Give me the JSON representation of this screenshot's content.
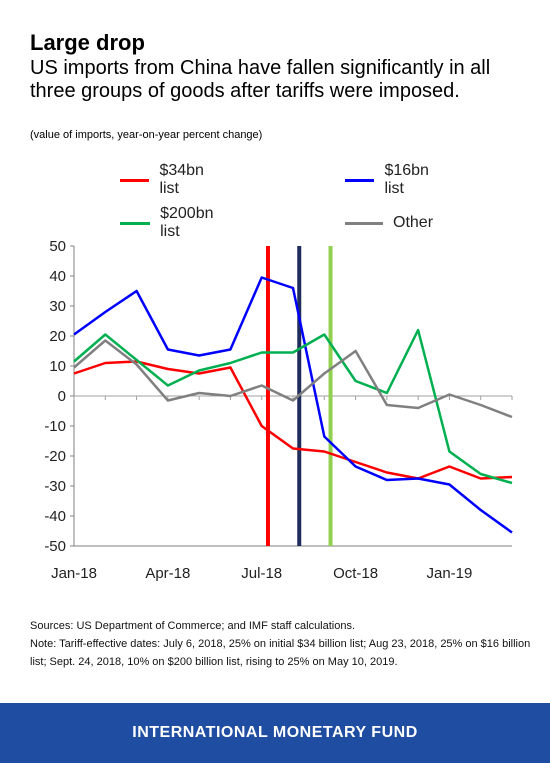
{
  "header": {
    "title": "Large drop",
    "subtitle": "US imports from China have fallen significantly in all three groups of goods after tariffs were imposed.",
    "unit_note": "(value of imports, year-on-year percent change)"
  },
  "legend": [
    {
      "label": "$34bn list",
      "color": "#ff0000"
    },
    {
      "label": "$16bn list",
      "color": "#0000ff"
    },
    {
      "label": "$200bn list",
      "color": "#00b050"
    },
    {
      "label": "Other",
      "color": "#808080"
    }
  ],
  "chart_data": {
    "type": "line",
    "title": "Large drop",
    "ylim": [
      -50,
      50
    ],
    "yticks": [
      50,
      40,
      30,
      20,
      10,
      0,
      -10,
      -20,
      -30,
      -40,
      -50
    ],
    "x": [
      "Jan-18",
      "Feb-18",
      "Mar-18",
      "Apr-18",
      "May-18",
      "Jun-18",
      "Jul-18",
      "Aug-18",
      "Sep-18",
      "Oct-18",
      "Nov-18",
      "Dec-18",
      "Jan-19",
      "Feb-19",
      "Mar-19"
    ],
    "xtick_labels": [
      "Jan-18",
      "Apr-18",
      "Jul-18",
      "Oct-18",
      "Jan-19"
    ],
    "series": [
      {
        "name": "$34bn list",
        "color": "#ff0000",
        "values": [
          7.5,
          11,
          11.5,
          9,
          7.5,
          9.5,
          -10,
          -17.5,
          -18.5,
          -22,
          -25.5,
          -27.5,
          -23.5,
          -27.5,
          -27
        ]
      },
      {
        "name": "$16bn list",
        "color": "#0000ff",
        "values": [
          20.5,
          28,
          35,
          15.5,
          13.5,
          15.5,
          39.5,
          36,
          -13.5,
          -23.5,
          -28,
          -27.5,
          -29.5,
          -38,
          -45.5
        ]
      },
      {
        "name": "$200bn list",
        "color": "#00b050",
        "values": [
          11.5,
          20.5,
          12,
          3.5,
          8.5,
          11,
          14.5,
          14.5,
          20.5,
          5,
          1,
          22,
          -18.5,
          -26,
          -29
        ]
      },
      {
        "name": "Other",
        "color": "#808080",
        "values": [
          9.5,
          18.5,
          10.5,
          -1.5,
          1,
          0,
          3.5,
          -1.5,
          7.5,
          15,
          -3,
          -4,
          0.5,
          -3,
          -7
        ]
      }
    ],
    "event_lines": [
      {
        "x": 6.2,
        "color": "#ff0000"
      },
      {
        "x": 7.2,
        "color": "#1f2d5c"
      },
      {
        "x": 8.2,
        "color": "#92d050"
      }
    ],
    "grid": false
  },
  "footnotes": {
    "sources": "Sources: US Department of Commerce; and IMF staff calculations.",
    "note": "Note: Tariff-effective dates: July 6, 2018, 25% on initial $34 billion list; Aug 23, 2018, 25% on $16 billion list; Sept. 24, 2018, 10% on $200 billion list, rising to 25% on May 10, 2019."
  },
  "footer": {
    "org": "INTERNATIONAL MONETARY FUND",
    "color": "#1e4da1"
  }
}
